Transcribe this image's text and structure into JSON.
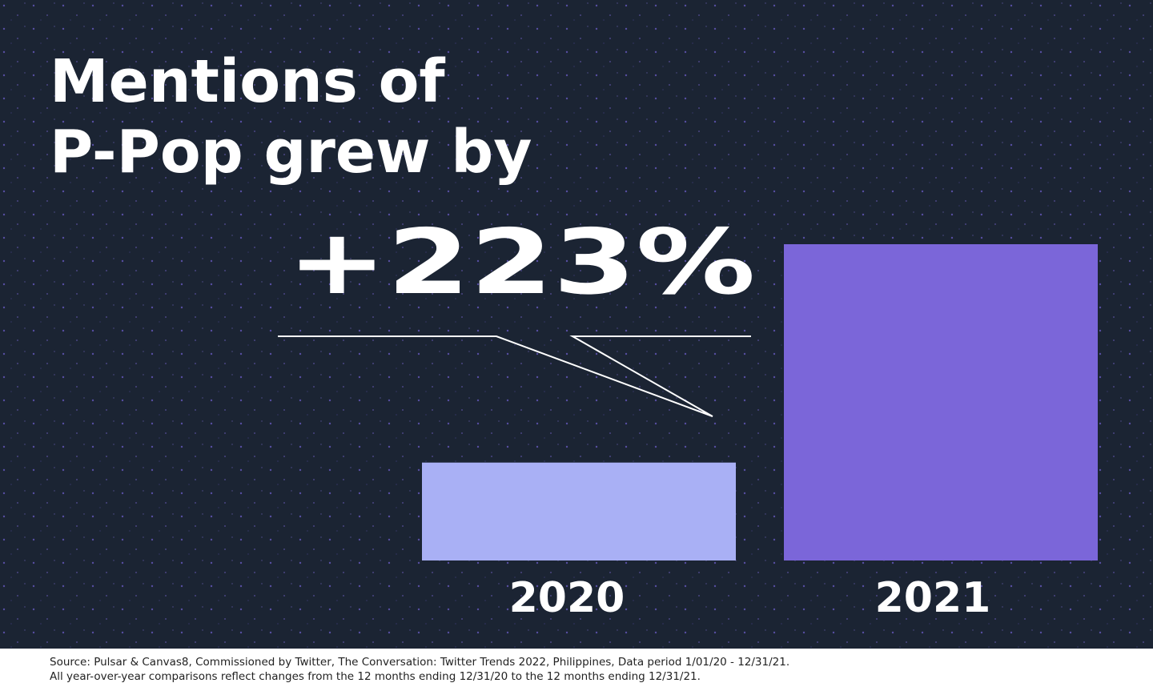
{
  "chart_data": {
    "type": "bar",
    "title": [
      "Mentions of",
      "P-Pop grew by"
    ],
    "annotation": "+223%",
    "categories": [
      "2020",
      "2021"
    ],
    "values": [
      100,
      323
    ],
    "colors": [
      "#a9b0f5",
      "#7b66d9"
    ],
    "source": [
      "Source: Pulsar & Canvas8, Commissioned by Twitter, The Conversation: Twitter Trends 2022, Philippines, Data period 1/01/20 - 12/31/21.",
      "All year-over-year comparisons reflect changes from the 12 months ending 12/31/20 to the 12 months ending 12/31/21."
    ]
  }
}
